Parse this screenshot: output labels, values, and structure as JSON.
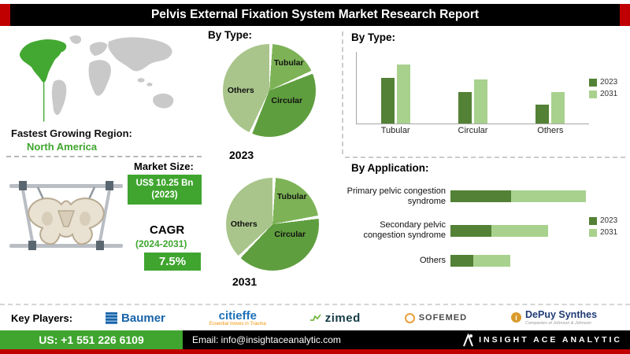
{
  "header": {
    "title": "Pelvis External Fixation System Market Research Report"
  },
  "left": {
    "region_label": "Fastest Growing Region:",
    "region_value": "North America",
    "market_size_label": "Market Size:",
    "market_size_value": "US$ 10.25 Bn",
    "market_size_year": "(2023)",
    "cagr_label": "CAGR",
    "cagr_period": "(2024-2031)",
    "cagr_value": "7.5%"
  },
  "middle": {
    "by_type_label": "By Type:"
  },
  "key_players": {
    "label": "Key Players:",
    "players": [
      {
        "name": "Baumer"
      },
      {
        "name": "citieffe",
        "tagline": "Essential moves in Trauma"
      },
      {
        "name": "zimed"
      },
      {
        "name": "SOFEMED"
      },
      {
        "name": "DePuy Synthes",
        "tagline": "Companies of Johnson & Johnson"
      }
    ]
  },
  "footer": {
    "phone": "US: +1 551 226 6109",
    "email": "Email: info@insightaceanalytic.com",
    "brand": "INSIGHT ACE ANALYTIC"
  },
  "colors": {
    "accent_red": "#c00000",
    "badge_green": "#3fa52f",
    "dark_green": "#538135",
    "light_green": "#a9d18e",
    "map_green": "#43a832",
    "map_gray": "#c9c9c9"
  },
  "chart_data": [
    {
      "id": "pie2023",
      "type": "pie",
      "year": "2023",
      "labels": [
        "Tubular",
        "Circular",
        "Others"
      ],
      "values": [
        18,
        38,
        44
      ],
      "colors": [
        "#7db356",
        "#5f9e3e",
        "#a9c58b"
      ]
    },
    {
      "id": "pie2031",
      "type": "pie",
      "year": "2031",
      "labels": [
        "Tubular",
        "Circular",
        "Others"
      ],
      "values": [
        22,
        40,
        38
      ],
      "colors": [
        "#7db356",
        "#5f9e3e",
        "#a9c58b"
      ]
    },
    {
      "id": "byTypeBars",
      "type": "bar",
      "title": "By  Type:",
      "categories": [
        "Tubular",
        "Circular",
        "Others"
      ],
      "ylim": [
        0,
        8.5
      ],
      "series": [
        {
          "name": "2023",
          "color": "#538135",
          "values": [
            5.4,
            3.7,
            2.2
          ]
        },
        {
          "name": "2031",
          "color": "#a9d18e",
          "values": [
            7.0,
            5.2,
            3.7
          ]
        }
      ]
    },
    {
      "id": "byApplication",
      "type": "hbar",
      "title": "By Application:",
      "categories": [
        "Primary pelvic congestion syndrome",
        "Secondary pelvic congestion syndrome",
        "Others"
      ],
      "series": [
        {
          "name": "2023",
          "color": "#538135",
          "values": [
            45,
            30,
            17
          ]
        },
        {
          "name": "2031",
          "color": "#a9d18e",
          "values": [
            55,
            42,
            27
          ]
        }
      ]
    }
  ]
}
